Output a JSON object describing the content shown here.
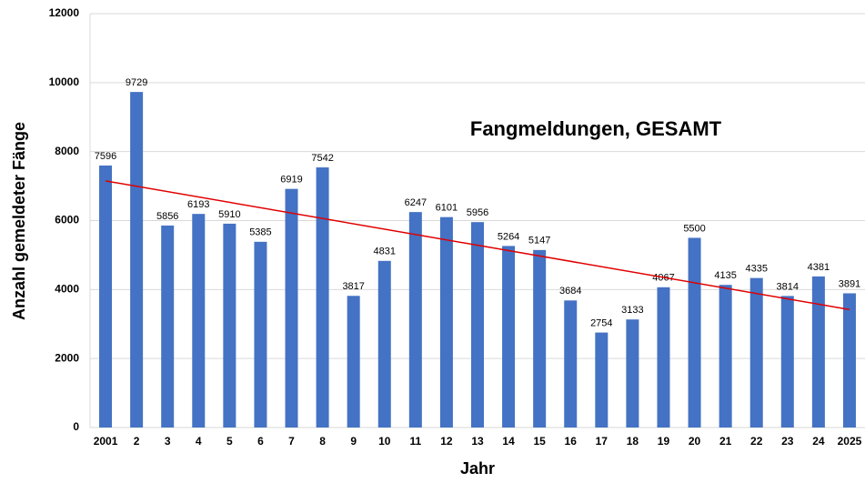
{
  "chart_data": {
    "type": "bar",
    "title": "Fangmeldungen, GESAMT",
    "x_label": "Jahr",
    "y_label": "Anzahl gemeldeter Fänge",
    "categories": [
      "2001",
      "2",
      "3",
      "4",
      "5",
      "6",
      "7",
      "8",
      "9",
      "10",
      "11",
      "12",
      "13",
      "14",
      "15",
      "16",
      "17",
      "18",
      "19",
      "20",
      "21",
      "22",
      "23",
      "24",
      "2025"
    ],
    "values": [
      7596,
      9729,
      5856,
      6193,
      5910,
      5385,
      6919,
      7542,
      3817,
      4831,
      6247,
      6101,
      5956,
      5264,
      5147,
      3684,
      2754,
      3133,
      4067,
      5500,
      4135,
      4335,
      3814,
      4381,
      3891
    ],
    "color": "#4472c4",
    "trendline": {
      "values": [
        7150,
        3420
      ],
      "color": "#e00000"
    },
    "ylim": [
      0,
      12000
    ],
    "yticks": [
      0,
      2000,
      4000,
      6000,
      8000,
      10000,
      12000
    ],
    "grid": true
  }
}
